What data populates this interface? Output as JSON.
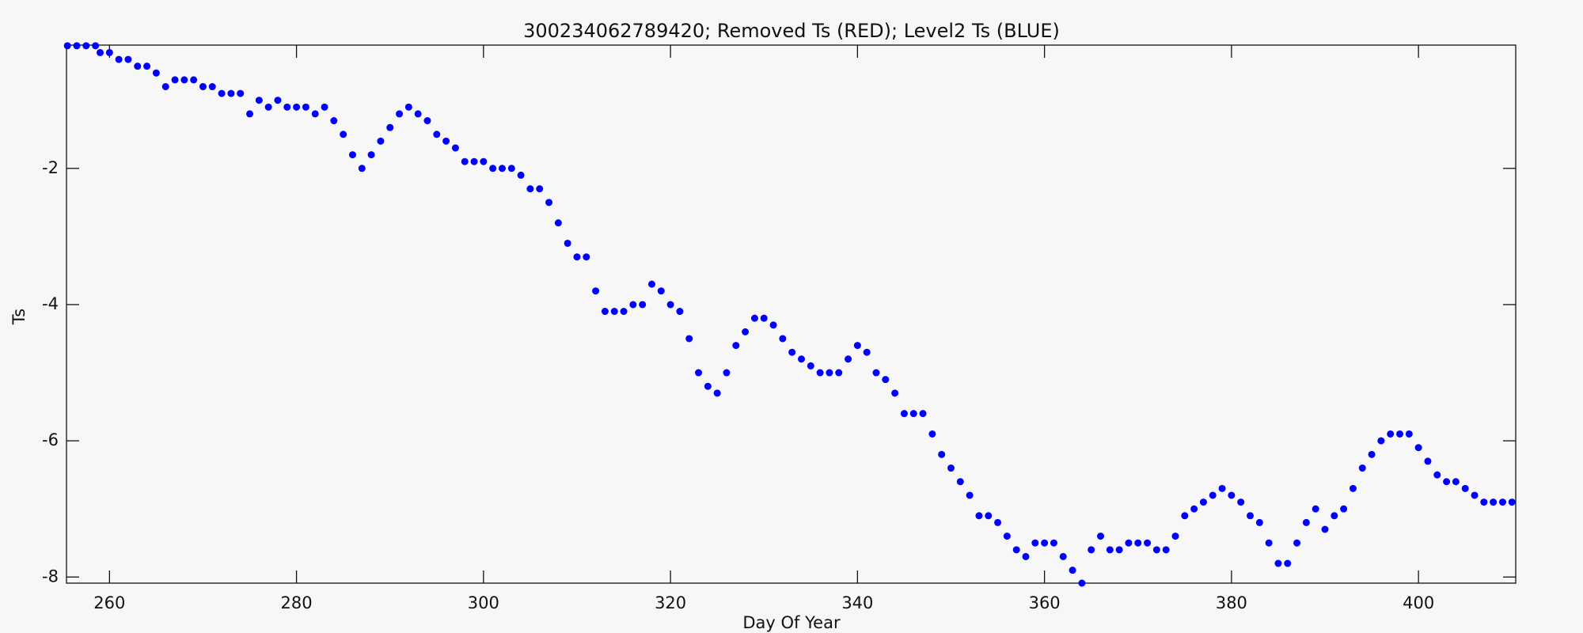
{
  "chart_data": {
    "type": "scatter",
    "title": "300234062789420; Removed Ts (RED); Level2 Ts (BLUE)",
    "x_label": "Day Of Year",
    "y_label": "Ts",
    "xlim": [
      255.4,
      410.4
    ],
    "ylim": [
      -8.09,
      -0.19
    ],
    "xticks": [
      260,
      280,
      300,
      320,
      340,
      360,
      380,
      400
    ],
    "yticks": [
      -8,
      -6,
      -4,
      -2
    ],
    "series": [
      {
        "name": "Level2 Ts",
        "color": "#0000ff",
        "x": [
          255.5,
          256.5,
          257.5,
          258.5,
          259,
          260,
          261,
          262,
          263,
          264,
          265,
          266,
          267,
          268,
          269,
          270,
          271,
          272,
          273,
          274,
          275,
          276,
          277,
          278,
          279,
          280,
          281,
          282,
          283,
          284,
          285,
          286,
          287,
          288,
          289,
          290,
          291,
          292,
          293,
          294,
          295,
          296,
          297,
          298,
          299,
          300,
          301,
          302,
          303,
          304,
          305,
          306,
          307,
          308,
          309,
          310,
          311,
          312,
          313,
          314,
          315,
          316,
          317,
          318,
          319,
          320,
          321,
          322,
          323,
          324,
          325,
          326,
          327,
          328,
          329,
          330,
          331,
          332,
          333,
          334,
          335,
          336,
          337,
          338,
          339,
          340,
          341,
          342,
          343,
          344,
          345,
          346,
          347,
          348,
          349,
          350,
          351,
          352,
          353,
          354,
          355,
          356,
          357,
          358,
          359,
          360,
          361,
          362,
          363,
          364,
          365,
          366,
          367,
          368,
          369,
          370,
          371,
          372,
          373,
          374,
          375,
          376,
          377,
          378,
          379,
          380,
          381,
          382,
          383,
          384,
          385,
          386,
          387,
          388,
          389,
          390,
          391,
          392,
          393,
          394,
          395,
          396,
          397,
          398,
          399,
          400,
          401,
          402,
          403,
          404,
          405,
          406,
          407,
          408,
          409,
          410
        ],
        "values": [
          -0.2,
          -0.2,
          -0.2,
          -0.2,
          -0.3,
          -0.3,
          -0.4,
          -0.4,
          -0.5,
          -0.5,
          -0.6,
          -0.8,
          -0.7,
          -0.7,
          -0.7,
          -0.8,
          -0.8,
          -0.9,
          -0.9,
          -0.9,
          -1.2,
          -1.0,
          -1.1,
          -1.0,
          -1.1,
          -1.1,
          -1.1,
          -1.2,
          -1.1,
          -1.3,
          -1.5,
          -1.8,
          -2.0,
          -1.8,
          -1.6,
          -1.4,
          -1.2,
          -1.1,
          -1.2,
          -1.3,
          -1.5,
          -1.6,
          -1.7,
          -1.9,
          -1.9,
          -1.9,
          -2.0,
          -2.0,
          -2.0,
          -2.1,
          -2.3,
          -2.3,
          -2.5,
          -2.8,
          -3.1,
          -3.3,
          -3.3,
          -3.8,
          -4.1,
          -4.1,
          -4.1,
          -4.0,
          -4.0,
          -3.7,
          -3.8,
          -4.0,
          -4.1,
          -4.5,
          -5.0,
          -5.2,
          -5.3,
          -5.0,
          -4.6,
          -4.4,
          -4.2,
          -4.2,
          -4.3,
          -4.5,
          -4.7,
          -4.8,
          -4.9,
          -5.0,
          -5.0,
          -5.0,
          -4.8,
          -4.6,
          -4.7,
          -5.0,
          -5.1,
          -5.3,
          -5.6,
          -5.6,
          -5.6,
          -5.9,
          -6.2,
          -6.4,
          -6.6,
          -6.8,
          -7.1,
          -7.1,
          -7.2,
          -7.4,
          -7.6,
          -7.7,
          -7.5,
          -7.5,
          -7.5,
          -7.7,
          -7.9,
          -8.1,
          -7.6,
          -7.4,
          -7.6,
          -7.6,
          -7.5,
          -7.5,
          -7.5,
          -7.6,
          -7.6,
          -7.4,
          -7.1,
          -7.0,
          -6.9,
          -6.8,
          -6.7,
          -6.8,
          -6.9,
          -7.1,
          -7.2,
          -7.5,
          -7.8,
          -7.8,
          -7.5,
          -7.2,
          -7.0,
          -7.3,
          -7.1,
          -7.0,
          -6.7,
          -6.4,
          -6.2,
          -6.0,
          -5.9,
          -5.9,
          -5.9,
          -6.1,
          -6.3,
          -6.5,
          -6.6,
          -6.6,
          -6.7,
          -6.8,
          -6.9,
          -6.9,
          -6.9,
          -6.9
        ]
      }
    ]
  }
}
